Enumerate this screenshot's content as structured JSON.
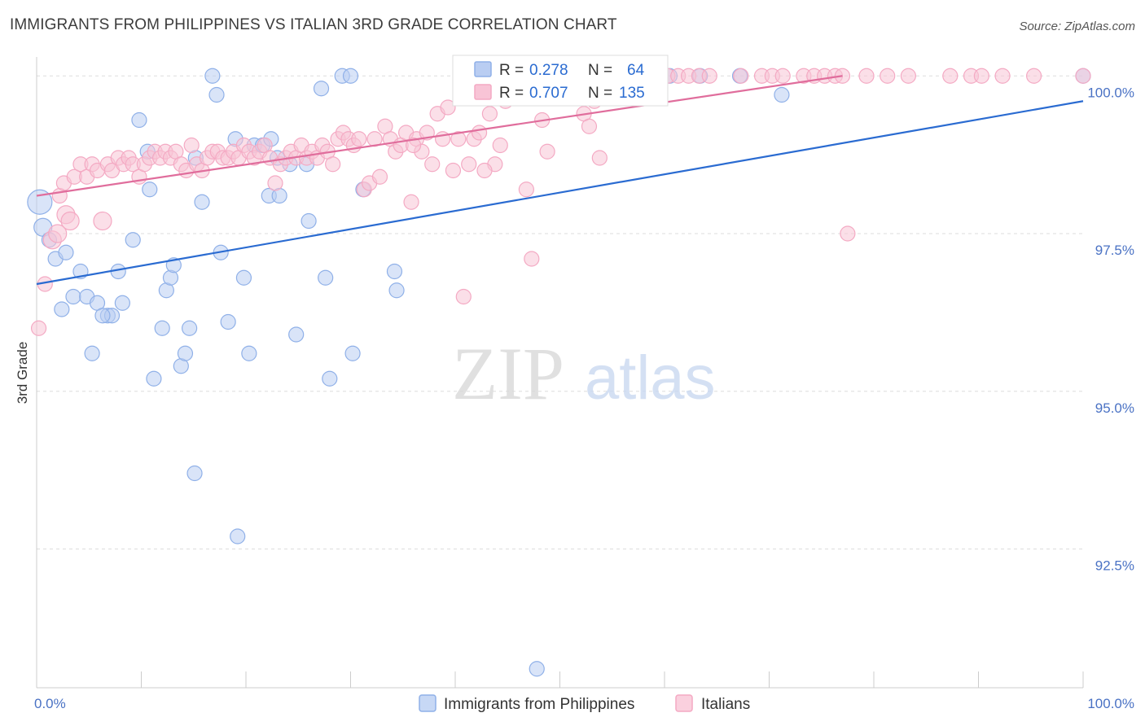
{
  "header": {
    "title": "IMMIGRANTS FROM PHILIPPINES VS ITALIAN 3RD GRADE CORRELATION CHART",
    "source": "Source: ZipAtlas.com"
  },
  "watermark": {
    "zip": "ZIP",
    "atlas": "atlas"
  },
  "chart_data": {
    "type": "scatter",
    "title": "IMMIGRANTS FROM PHILIPPINES VS ITALIAN 3RD GRADE CORRELATION CHART",
    "xlabel": "",
    "ylabel": "3rd Grade",
    "xlim": [
      0,
      100
    ],
    "ylim": [
      90.3,
      100.3
    ],
    "x_tick_labels": [
      {
        "value": 0,
        "label": "0.0%"
      },
      {
        "value": 100,
        "label": "100.0%"
      }
    ],
    "y_tick_labels": [
      {
        "value": 100,
        "label": "100.0%"
      },
      {
        "value": 97.5,
        "label": "97.5%"
      },
      {
        "value": 95,
        "label": "95.0%"
      },
      {
        "value": 92.5,
        "label": "92.5%"
      }
    ],
    "grid": "horizontal dashed",
    "legend_placement": "bottom-center",
    "series": [
      {
        "name": "Immigrants from Philippines",
        "color": "#8fb0e8",
        "line_color": "#2a6bd1",
        "R": "0.278",
        "N": "64",
        "trend": [
          [
            0,
            96.7
          ],
          [
            100,
            99.6
          ]
        ],
        "points": [
          [
            0.3,
            98.0,
            14
          ],
          [
            0.6,
            97.6,
            10
          ],
          [
            1.2,
            97.4,
            8
          ],
          [
            1.8,
            97.1,
            8
          ],
          [
            2.8,
            97.2,
            8
          ],
          [
            3.5,
            96.5,
            8
          ],
          [
            2.4,
            96.3,
            8
          ],
          [
            4.8,
            96.5,
            8
          ],
          [
            4.2,
            96.9,
            8
          ],
          [
            5.8,
            96.4,
            8
          ],
          [
            6.8,
            96.2,
            8
          ],
          [
            7.2,
            96.2,
            8
          ],
          [
            6.3,
            96.2,
            8
          ],
          [
            7.8,
            96.9,
            8
          ],
          [
            8.2,
            96.4,
            8
          ],
          [
            5.3,
            95.6,
            8
          ],
          [
            9.2,
            97.4,
            8
          ],
          [
            9.8,
            99.3,
            8
          ],
          [
            11.2,
            95.2,
            8
          ],
          [
            10.8,
            98.2,
            8
          ],
          [
            10.6,
            98.8,
            8
          ],
          [
            12.0,
            96.0,
            8
          ],
          [
            12.4,
            96.6,
            8
          ],
          [
            12.8,
            96.8,
            8
          ],
          [
            13.1,
            97.0,
            8
          ],
          [
            13.8,
            95.4,
            8
          ],
          [
            14.2,
            95.6,
            8
          ],
          [
            14.6,
            96.0,
            8
          ],
          [
            15.2,
            98.7,
            8
          ],
          [
            15.8,
            98.0,
            8
          ],
          [
            15.1,
            93.7,
            8
          ],
          [
            16.8,
            100.0,
            8
          ],
          [
            17.2,
            99.7,
            8
          ],
          [
            17.6,
            97.2,
            8
          ],
          [
            18.3,
            96.1,
            8
          ],
          [
            19.2,
            92.7,
            8
          ],
          [
            19.0,
            99.0,
            8
          ],
          [
            19.8,
            96.8,
            8
          ],
          [
            20.3,
            95.6,
            8
          ],
          [
            20.8,
            98.9,
            8
          ],
          [
            21.6,
            98.9,
            8
          ],
          [
            22.2,
            98.1,
            8
          ],
          [
            22.4,
            99.0,
            8
          ],
          [
            23.2,
            98.1,
            8
          ],
          [
            23.0,
            98.7,
            8
          ],
          [
            24.2,
            98.6,
            8
          ],
          [
            24.8,
            95.9,
            8
          ],
          [
            25.8,
            98.6,
            8
          ],
          [
            26.0,
            97.7,
            8
          ],
          [
            27.2,
            99.8,
            8
          ],
          [
            27.6,
            96.8,
            8
          ],
          [
            28.0,
            95.2,
            8
          ],
          [
            29.2,
            100.0,
            8
          ],
          [
            30.0,
            100.0,
            8
          ],
          [
            30.2,
            95.6,
            8
          ],
          [
            31.2,
            98.2,
            8
          ],
          [
            34.2,
            96.9,
            8
          ],
          [
            34.4,
            96.6,
            8
          ],
          [
            47.8,
            90.6,
            8
          ],
          [
            60.5,
            100.0,
            8
          ],
          [
            63.4,
            100.0,
            8
          ],
          [
            67.2,
            100.0,
            8
          ],
          [
            71.2,
            99.7,
            8
          ],
          [
            100.0,
            100.0,
            8
          ]
        ]
      },
      {
        "name": "Italians",
        "color": "#f4a9c3",
        "line_color": "#e06d9c",
        "R": "0.707",
        "N": "135",
        "trend": [
          [
            0,
            98.1
          ],
          [
            77,
            100.0
          ]
        ],
        "points": [
          [
            0.2,
            96.0,
            8
          ],
          [
            0.8,
            96.7,
            8
          ],
          [
            1.5,
            97.4,
            10
          ],
          [
            2.0,
            97.5,
            10
          ],
          [
            2.2,
            98.1,
            8
          ],
          [
            2.6,
            98.3,
            8
          ],
          [
            2.8,
            97.8,
            10
          ],
          [
            3.2,
            97.7,
            10
          ],
          [
            3.6,
            98.4,
            8
          ],
          [
            4.2,
            98.6,
            8
          ],
          [
            4.8,
            98.4,
            8
          ],
          [
            5.3,
            98.6,
            8
          ],
          [
            5.8,
            98.5,
            8
          ],
          [
            6.3,
            97.7,
            10
          ],
          [
            6.8,
            98.6,
            8
          ],
          [
            7.2,
            98.5,
            8
          ],
          [
            7.8,
            98.7,
            8
          ],
          [
            8.3,
            98.6,
            8
          ],
          [
            8.8,
            98.7,
            8
          ],
          [
            9.2,
            98.6,
            8
          ],
          [
            9.8,
            98.4,
            8
          ],
          [
            10.3,
            98.6,
            8
          ],
          [
            10.8,
            98.7,
            8
          ],
          [
            11.3,
            98.8,
            8
          ],
          [
            11.8,
            98.7,
            8
          ],
          [
            12.3,
            98.8,
            8
          ],
          [
            12.8,
            98.7,
            8
          ],
          [
            13.3,
            98.8,
            8
          ],
          [
            13.8,
            98.6,
            8
          ],
          [
            14.3,
            98.5,
            8
          ],
          [
            14.8,
            98.9,
            8
          ],
          [
            15.3,
            98.6,
            8
          ],
          [
            15.8,
            98.5,
            8
          ],
          [
            16.3,
            98.7,
            8
          ],
          [
            16.8,
            98.8,
            8
          ],
          [
            17.3,
            98.8,
            8
          ],
          [
            17.8,
            98.7,
            8
          ],
          [
            18.3,
            98.7,
            8
          ],
          [
            18.8,
            98.8,
            8
          ],
          [
            19.3,
            98.7,
            8
          ],
          [
            19.8,
            98.9,
            8
          ],
          [
            20.3,
            98.8,
            8
          ],
          [
            20.8,
            98.7,
            8
          ],
          [
            21.3,
            98.8,
            8
          ],
          [
            21.8,
            98.9,
            8
          ],
          [
            22.3,
            98.7,
            8
          ],
          [
            22.8,
            98.3,
            8
          ],
          [
            23.3,
            98.6,
            8
          ],
          [
            23.8,
            98.7,
            8
          ],
          [
            24.3,
            98.8,
            8
          ],
          [
            24.8,
            98.7,
            8
          ],
          [
            25.3,
            98.9,
            8
          ],
          [
            25.8,
            98.7,
            8
          ],
          [
            26.3,
            98.8,
            8
          ],
          [
            26.8,
            98.7,
            8
          ],
          [
            27.3,
            98.9,
            8
          ],
          [
            27.8,
            98.8,
            8
          ],
          [
            28.3,
            98.6,
            8
          ],
          [
            28.8,
            99.0,
            8
          ],
          [
            29.3,
            99.1,
            8
          ],
          [
            29.8,
            99.0,
            8
          ],
          [
            30.3,
            98.9,
            8
          ],
          [
            30.8,
            99.0,
            8
          ],
          [
            31.3,
            98.2,
            8
          ],
          [
            31.8,
            98.3,
            8
          ],
          [
            32.3,
            99.0,
            8
          ],
          [
            32.8,
            98.4,
            8
          ],
          [
            33.3,
            99.2,
            8
          ],
          [
            33.8,
            99.0,
            8
          ],
          [
            34.3,
            98.8,
            8
          ],
          [
            34.8,
            98.9,
            8
          ],
          [
            35.3,
            99.1,
            8
          ],
          [
            35.8,
            98.0,
            8
          ],
          [
            36.3,
            99.0,
            8
          ],
          [
            36.8,
            98.8,
            8
          ],
          [
            37.3,
            99.1,
            8
          ],
          [
            37.8,
            98.6,
            8
          ],
          [
            38.3,
            99.4,
            8
          ],
          [
            38.8,
            99.0,
            8
          ],
          [
            39.3,
            99.5,
            8
          ],
          [
            39.8,
            98.5,
            8
          ],
          [
            40.3,
            99.0,
            8
          ],
          [
            40.8,
            96.5,
            8
          ],
          [
            41.3,
            98.6,
            8
          ],
          [
            41.8,
            99.0,
            8
          ],
          [
            42.3,
            99.1,
            8
          ],
          [
            43.3,
            99.4,
            8
          ],
          [
            43.8,
            98.6,
            8
          ],
          [
            44.3,
            98.9,
            8
          ],
          [
            44.8,
            99.6,
            8
          ],
          [
            45.3,
            100.0,
            8
          ],
          [
            46.3,
            99.8,
            8
          ],
          [
            46.8,
            98.2,
            8
          ],
          [
            47.3,
            97.1,
            8
          ],
          [
            48.3,
            99.3,
            8
          ],
          [
            49.3,
            100.0,
            8
          ],
          [
            50.3,
            99.8,
            8
          ],
          [
            51.3,
            100.0,
            8
          ],
          [
            52.3,
            99.4,
            8
          ],
          [
            53.3,
            99.6,
            8
          ],
          [
            53.8,
            98.7,
            8
          ],
          [
            54.3,
            100.0,
            8
          ],
          [
            55.3,
            100.0,
            8
          ],
          [
            56.3,
            100.0,
            8
          ],
          [
            57.3,
            100.0,
            8
          ],
          [
            58.3,
            100.0,
            8
          ],
          [
            59.3,
            100.0,
            8
          ],
          [
            60.3,
            100.0,
            8
          ],
          [
            61.3,
            100.0,
            8
          ],
          [
            62.3,
            100.0,
            8
          ],
          [
            63.3,
            100.0,
            8
          ],
          [
            64.3,
            100.0,
            8
          ],
          [
            67.3,
            100.0,
            8
          ],
          [
            69.3,
            100.0,
            8
          ],
          [
            70.3,
            100.0,
            8
          ],
          [
            71.3,
            100.0,
            8
          ],
          [
            73.3,
            100.0,
            8
          ],
          [
            74.3,
            100.0,
            8
          ],
          [
            75.3,
            100.0,
            8
          ],
          [
            76.3,
            100.0,
            8
          ],
          [
            77.0,
            100.0,
            8
          ],
          [
            77.5,
            97.5,
            8
          ],
          [
            79.3,
            100.0,
            8
          ],
          [
            81.3,
            100.0,
            8
          ],
          [
            83.3,
            100.0,
            8
          ],
          [
            87.3,
            100.0,
            8
          ],
          [
            89.3,
            100.0,
            8
          ],
          [
            90.3,
            100.0,
            8
          ],
          [
            92.3,
            100.0,
            8
          ],
          [
            95.3,
            100.0,
            8
          ],
          [
            100.0,
            100.0,
            8
          ],
          [
            36.0,
            98.9,
            8
          ],
          [
            42.8,
            98.5,
            8
          ],
          [
            48.8,
            98.8,
            8
          ],
          [
            52.8,
            99.2,
            8
          ]
        ]
      }
    ]
  },
  "stats_box": {
    "r_label": "R = ",
    "n_label": "N = "
  }
}
